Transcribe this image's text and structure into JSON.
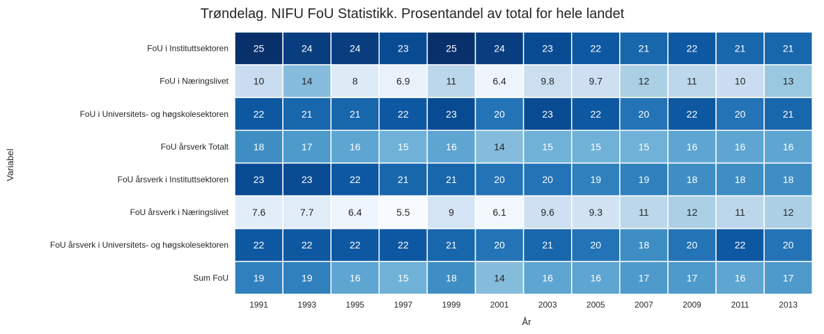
{
  "chart_data": {
    "type": "heatmap",
    "title": "Trøndelag. NIFU FoU Statistikk. Prosentandel av total for hele landet",
    "xlabel": "År",
    "ylabel": "Variabel",
    "x": [
      "1991",
      "1993",
      "1995",
      "1997",
      "1999",
      "2001",
      "2003",
      "2005",
      "2007",
      "2009",
      "2011",
      "2013"
    ],
    "y": [
      "FoU i Instituttsektoren",
      "FoU i Næringslivet",
      "FoU i Universitets- og høgskolesektoren",
      "FoU årsverk Totalt",
      "FoU årsverk i Instituttsektoren",
      "FoU årsverk i Næringslivet",
      "FoU årsverk i Universitets- og høgskolesektoren",
      "Sum FoU"
    ],
    "values": [
      [
        25,
        24,
        24,
        23,
        25,
        24,
        23,
        22,
        21,
        22,
        21,
        21
      ],
      [
        10,
        14,
        8,
        6.9,
        11,
        6.4,
        9.8,
        9.7,
        12,
        11,
        10,
        13
      ],
      [
        22,
        21,
        21,
        22,
        23,
        20,
        23,
        22,
        20,
        22,
        20,
        21
      ],
      [
        18,
        17,
        16,
        15,
        16,
        14,
        15,
        15,
        15,
        16,
        16,
        16
      ],
      [
        23,
        23,
        22,
        21,
        21,
        20,
        20,
        19,
        19,
        18,
        18,
        18
      ],
      [
        7.6,
        7.7,
        6.4,
        5.5,
        9,
        6.1,
        9.6,
        9.3,
        11,
        12,
        11,
        12
      ],
      [
        22,
        22,
        22,
        22,
        21,
        20,
        21,
        20,
        18,
        20,
        22,
        20
      ],
      [
        19,
        19,
        16,
        15,
        18,
        14,
        16,
        16,
        17,
        17,
        16,
        17
      ]
    ],
    "colormap": "Blues",
    "vmin": 5.5,
    "vmax": 25,
    "grid": false
  }
}
